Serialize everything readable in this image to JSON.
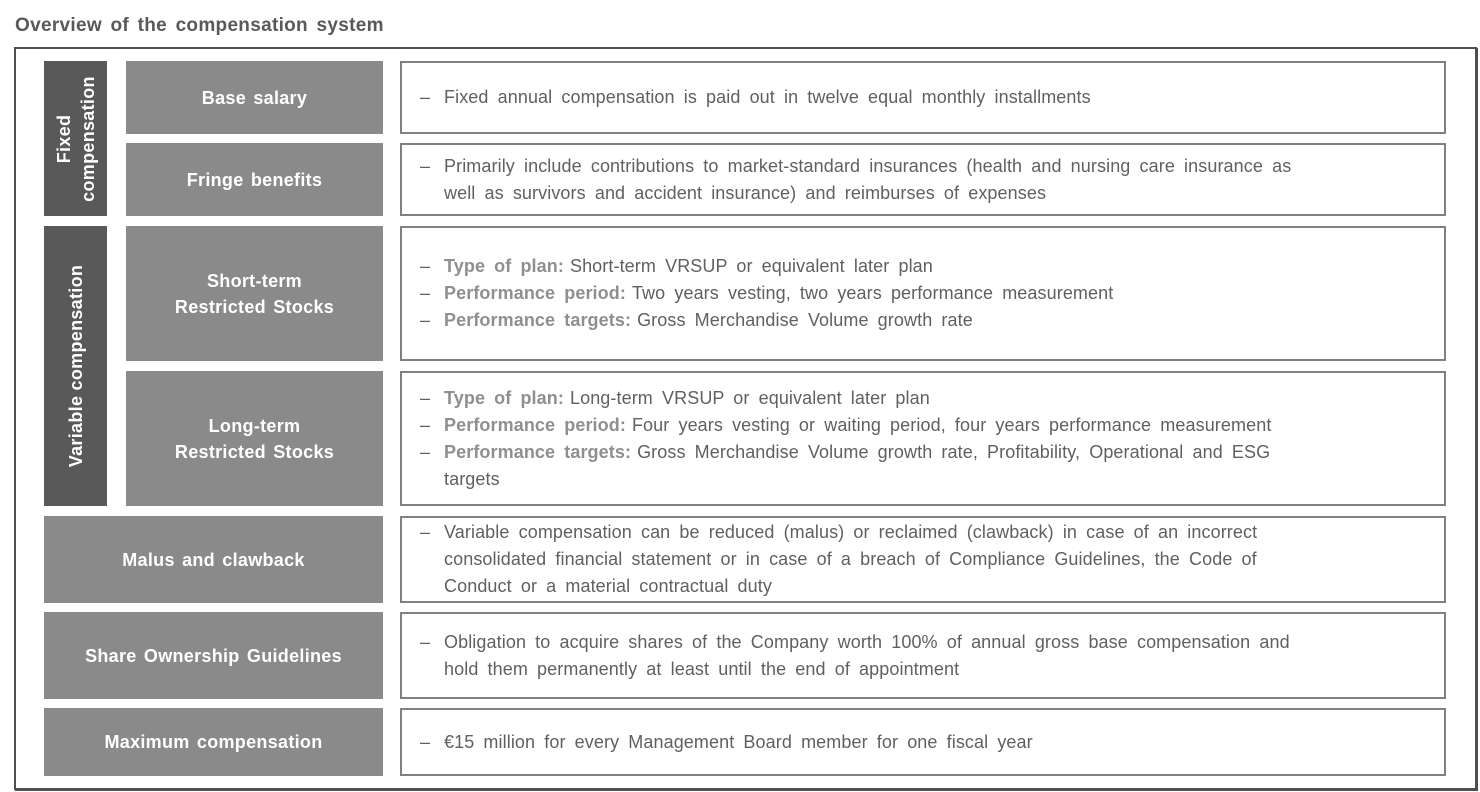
{
  "title": "Overview of the compensation system",
  "bullet_marker": "–",
  "colors": {
    "group_tag_bg": "#595959",
    "label_box_bg": "#8a8a8a",
    "outer_border": "#4f4f4f",
    "text_box_border": "#808080",
    "body_text": "#606060",
    "lead_text": "#8f8f8f",
    "title_text": "#595959",
    "label_text": "#ffffff"
  },
  "groups": [
    {
      "id": "fixed",
      "label": "Fixed\ncompensation"
    },
    {
      "id": "variable",
      "label": "Variable compensation"
    }
  ],
  "rows": [
    {
      "id": "base-salary",
      "group": "fixed",
      "label": "Base salary",
      "bullets": [
        {
          "text": "Fixed annual compensation is paid out in twelve equal monthly installments"
        }
      ]
    },
    {
      "id": "fringe-benefits",
      "group": "fixed",
      "label": "Fringe benefits",
      "bullets": [
        {
          "text": "Primarily include contributions to market-standard insurances (health and nursing care insurance as\nwell as survivors and accident insurance) and reimburses of expenses"
        }
      ]
    },
    {
      "id": "short-term-restricted-stocks",
      "group": "variable",
      "label": "Short-term\nRestricted Stocks",
      "bullets": [
        {
          "lead": "Type of plan:",
          "text": "Short-term VRSUP or equivalent later plan"
        },
        {
          "lead": "Performance period:",
          "text": "Two years vesting, two years performance measurement"
        },
        {
          "lead": "Performance targets:",
          "text": "Gross Merchandise Volume growth rate"
        }
      ]
    },
    {
      "id": "long-term-restricted-stocks",
      "group": "variable",
      "label": "Long-term\nRestricted Stocks",
      "bullets": [
        {
          "lead": "Type of plan:",
          "text": "Long-term VRSUP or equivalent later plan"
        },
        {
          "lead": "Performance period:",
          "text": "Four years vesting or waiting period, four years performance measurement"
        },
        {
          "lead": "Performance targets:",
          "text": "Gross Merchandise Volume growth rate, Profitability, Operational and ESG\ntargets"
        }
      ]
    },
    {
      "id": "malus-and-clawback",
      "group": null,
      "label": "Malus and clawback",
      "bullets": [
        {
          "text": "Variable compensation can be reduced (malus) or reclaimed (clawback) in case of an incorrect\nconsolidated financial statement or in case of a breach of Compliance Guidelines, the Code of\nConduct or a material contractual duty"
        }
      ]
    },
    {
      "id": "share-ownership-guidelines",
      "group": null,
      "label": "Share Ownership Guidelines",
      "bullets": [
        {
          "text": "Obligation to acquire shares of the Company worth 100% of annual gross base compensation and\nhold them permanently at least until the end of appointment"
        }
      ]
    },
    {
      "id": "maximum-compensation",
      "group": null,
      "label": "Maximum compensation",
      "bullets": [
        {
          "text": "€15 million for every Management Board member for one fiscal year"
        }
      ]
    }
  ]
}
